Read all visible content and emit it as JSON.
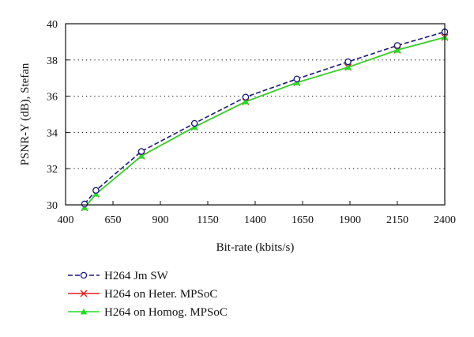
{
  "chart_data": {
    "type": "line",
    "xlabel": "Bit-rate (kbits/s)",
    "ylabel": "PSNR-Y (dB), Stefan",
    "xlim": [
      400,
      2400
    ],
    "ylim": [
      30,
      40
    ],
    "xticks": [
      400,
      650,
      900,
      1150,
      1400,
      1650,
      1900,
      2150,
      2400
    ],
    "yticks": [
      30,
      32,
      34,
      36,
      38,
      40
    ],
    "grid": {
      "horizontal": true,
      "vertical": false,
      "style": "dotted"
    },
    "legend_position": "bottom-left",
    "series": [
      {
        "name": "H264 Jm SW",
        "color": "#1a1a7a",
        "line_style": "dashed",
        "marker": "open-circle",
        "x": [
          500,
          560,
          800,
          1080,
          1350,
          1620,
          1890,
          2150,
          2400
        ],
        "y": [
          30.05,
          30.8,
          32.95,
          34.5,
          35.95,
          36.95,
          37.9,
          38.8,
          39.55
        ]
      },
      {
        "name": "H264 on Heter. MPSoC",
        "color": "#e02020",
        "line_style": "solid",
        "marker": "x",
        "x": [
          500,
          560,
          800,
          1080,
          1350,
          1620,
          1890,
          2150,
          2400
        ],
        "y": [
          29.85,
          30.6,
          32.7,
          34.3,
          35.7,
          36.75,
          37.6,
          38.55,
          39.25
        ]
      },
      {
        "name": "H264 on Homog. MPSoC",
        "color": "#22dd22",
        "line_style": "solid",
        "marker": "filled-triangle",
        "x": [
          500,
          560,
          800,
          1080,
          1350,
          1620,
          1890,
          2150,
          2400
        ],
        "y": [
          29.85,
          30.6,
          32.7,
          34.3,
          35.7,
          36.75,
          37.6,
          38.55,
          39.25
        ]
      }
    ]
  }
}
